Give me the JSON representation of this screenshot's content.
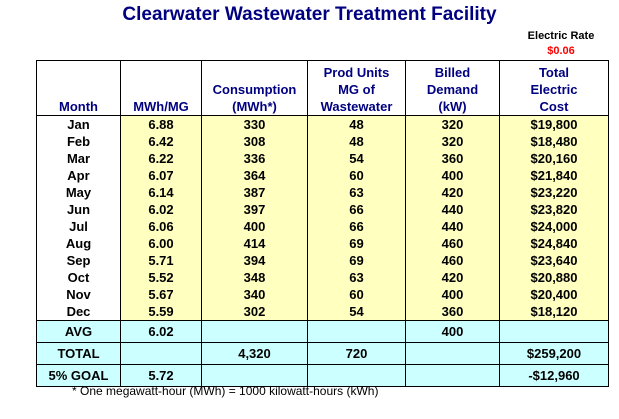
{
  "title": "Clearwater Wastewater Treatment Facility",
  "electric_rate": {
    "label": "Electric Rate",
    "value": "$0.06"
  },
  "table": {
    "headers": [
      "Month",
      "MWh/MG",
      "Consumption\n(MWh*)",
      "Prod Units\nMG of\nWastewater",
      "Billed\nDemand\n(kW)",
      "Total\nElectric\nCost"
    ],
    "rows": [
      [
        "Jan",
        "6.88",
        "330",
        "48",
        "320",
        "$19,800"
      ],
      [
        "Feb",
        "6.42",
        "308",
        "48",
        "320",
        "$18,480"
      ],
      [
        "Mar",
        "6.22",
        "336",
        "54",
        "360",
        "$20,160"
      ],
      [
        "Apr",
        "6.07",
        "364",
        "60",
        "400",
        "$21,840"
      ],
      [
        "May",
        "6.14",
        "387",
        "63",
        "420",
        "$23,220"
      ],
      [
        "Jun",
        "6.02",
        "397",
        "66",
        "440",
        "$23,820"
      ],
      [
        "Jul",
        "6.06",
        "400",
        "66",
        "440",
        "$24,000"
      ],
      [
        "Aug",
        "6.00",
        "414",
        "69",
        "460",
        "$24,840"
      ],
      [
        "Sep",
        "5.71",
        "394",
        "69",
        "460",
        "$23,640"
      ],
      [
        "Oct",
        "5.52",
        "348",
        "63",
        "420",
        "$20,880"
      ],
      [
        "Nov",
        "5.67",
        "340",
        "60",
        "400",
        "$20,400"
      ],
      [
        "Dec",
        "5.59",
        "302",
        "54",
        "360",
        "$18,120"
      ]
    ],
    "avg": [
      "AVG",
      "6.02",
      "",
      "",
      "400",
      ""
    ],
    "total": [
      "TOTAL",
      "",
      "4,320",
      "720",
      "",
      "$259,200"
    ],
    "goal": [
      "5% GOAL",
      "5.72",
      "",
      "",
      "",
      "-$12,960"
    ]
  },
  "footnote": "* One megawatt-hour (MWh) = 1000 kilowatt-hours (kWh)",
  "colors": {
    "title": "#000080",
    "rate": "#ff0000",
    "yellow_fill": "#ffffc0",
    "cyan_fill": "#ccffff"
  }
}
